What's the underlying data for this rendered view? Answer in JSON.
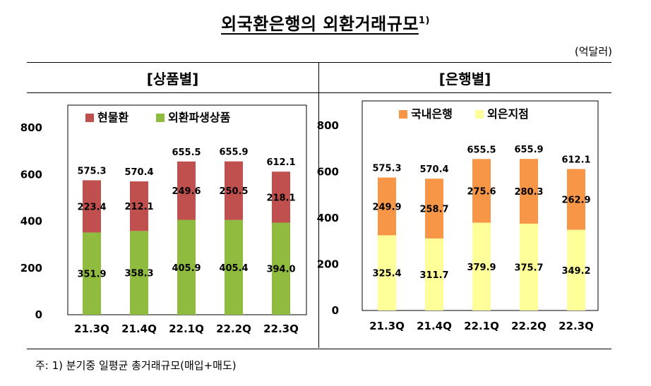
{
  "title": "외국환은행의 외환거래규모",
  "title_note": "1)",
  "unit": "(억달러)",
  "footnote": "주: 1) 분기중 일평균 총거래규모(매입+매도)",
  "chart_data": [
    {
      "type": "bar",
      "stacked": true,
      "panel_title": "[상품별]",
      "categories": [
        "21.3Q",
        "21.4Q",
        "22.1Q",
        "22.2Q",
        "22.3Q"
      ],
      "ylim": [
        0,
        800
      ],
      "yticks": [
        0,
        200,
        400,
        600,
        800
      ],
      "legend_position": "top-left",
      "series": [
        {
          "name": "현물환",
          "values": [
            223.4,
            212.1,
            249.6,
            250.5,
            218.1
          ],
          "color": "#c0504d"
        },
        {
          "name": "외환파생상품",
          "values": [
            351.9,
            358.3,
            405.9,
            405.4,
            394.0
          ],
          "color": "#8fbc3f"
        }
      ],
      "totals": [
        575.3,
        570.4,
        655.5,
        655.9,
        612.1
      ]
    },
    {
      "type": "bar",
      "stacked": true,
      "panel_title": "[은행별]",
      "categories": [
        "21.3Q",
        "21.4Q",
        "22.1Q",
        "22.2Q",
        "22.3Q"
      ],
      "ylim": [
        0,
        800
      ],
      "yticks": [
        0,
        200,
        400,
        600,
        800
      ],
      "legend_position": "top-left",
      "series": [
        {
          "name": "국내은행",
          "values": [
            249.9,
            258.7,
            275.6,
            280.3,
            262.9
          ],
          "color": "#f79646"
        },
        {
          "name": "외은지점",
          "values": [
            325.4,
            311.7,
            379.9,
            375.7,
            349.2
          ],
          "color": "#ffff99"
        }
      ],
      "totals": [
        575.3,
        570.4,
        655.5,
        655.9,
        612.1
      ]
    }
  ]
}
